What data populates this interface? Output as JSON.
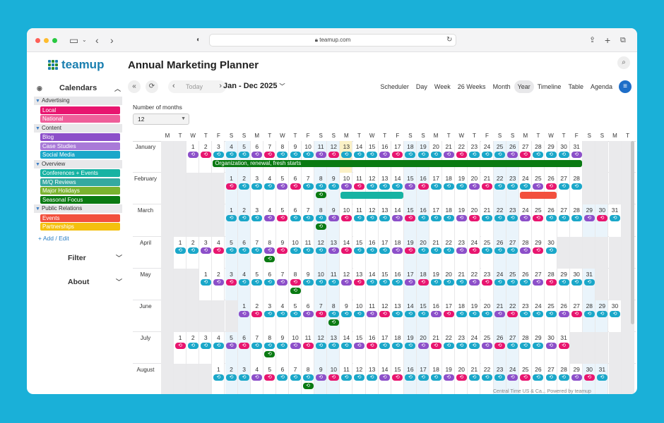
{
  "browser": {
    "url": "teamup.com"
  },
  "app": {
    "logo_text": "teamup",
    "title": "Annual Marketing Planner"
  },
  "sidebar": {
    "calendars_label": "Calendars",
    "groups": [
      {
        "name": "Advertising",
        "items": [
          {
            "label": "Local",
            "color": "#e8156f"
          },
          {
            "label": "National",
            "color": "#ef5f9a"
          }
        ]
      },
      {
        "name": "Content",
        "items": [
          {
            "label": "Blog",
            "color": "#8c4fc9"
          },
          {
            "label": "Case Studies",
            "color": "#a97ad8"
          },
          {
            "label": "Social Media",
            "color": "#1aa7c9"
          }
        ]
      },
      {
        "name": "Overview",
        "items": [
          {
            "label": "Conferences + Events",
            "color": "#17b3a3"
          },
          {
            "label": "M/Q Reviews",
            "color": "#35a9a0"
          },
          {
            "label": "Major Holidays",
            "color": "#7ab32f"
          },
          {
            "label": "Seasonal Focus",
            "color": "#0a7a12"
          }
        ]
      },
      {
        "name": "Public Relations",
        "items": [
          {
            "label": "Events",
            "color": "#f2503d"
          },
          {
            "label": "Partnerships",
            "color": "#f4c00e"
          }
        ]
      }
    ],
    "add_edit": "+ Add / Edit",
    "filter_label": "Filter",
    "about_label": "About"
  },
  "toolbar": {
    "today": "Today",
    "range": "Jan - Dec 2025",
    "views": [
      "Scheduler",
      "Day",
      "Week",
      "26 Weeks",
      "Month",
      "Year",
      "Timeline",
      "Table",
      "Agenda"
    ],
    "active_view": "Year"
  },
  "months_control": {
    "label": "Number of months",
    "value": "12"
  },
  "calendar": {
    "weekday_header": [
      "M",
      "T",
      "W",
      "T",
      "F",
      "S",
      "S",
      "M",
      "T",
      "W",
      "T",
      "F",
      "S",
      "S",
      "M",
      "T",
      "W",
      "T",
      "F",
      "S",
      "S",
      "M",
      "T",
      "W",
      "T",
      "F",
      "S",
      "S",
      "M",
      "T",
      "W",
      "T",
      "F",
      "S",
      "S",
      "M",
      "T"
    ],
    "months": [
      {
        "name": "January",
        "offset": 2,
        "days": 31
      },
      {
        "name": "February",
        "offset": 5,
        "days": 28
      },
      {
        "name": "March",
        "offset": 5,
        "days": 31
      },
      {
        "name": "April",
        "offset": 1,
        "days": 30
      },
      {
        "name": "May",
        "offset": 3,
        "days": 31
      },
      {
        "name": "June",
        "offset": 6,
        "days": 30
      },
      {
        "name": "July",
        "offset": 1,
        "days": 31
      },
      {
        "name": "August",
        "offset": 4,
        "days": 31
      }
    ],
    "today": {
      "month": 0,
      "day": 13
    },
    "bars": [
      {
        "month": 0,
        "start": 3,
        "end": 31,
        "label": "Organization, renewal, fresh starts",
        "color": "#0a7a12"
      },
      {
        "month": 1,
        "start": 10,
        "end": 14,
        "label": "",
        "color": "#17b3a3"
      },
      {
        "month": 1,
        "start": 24,
        "end": 26,
        "label": "",
        "color": "#f2503d"
      }
    ]
  },
  "footer": "Central Time US & Ca...   Powered by teamup"
}
